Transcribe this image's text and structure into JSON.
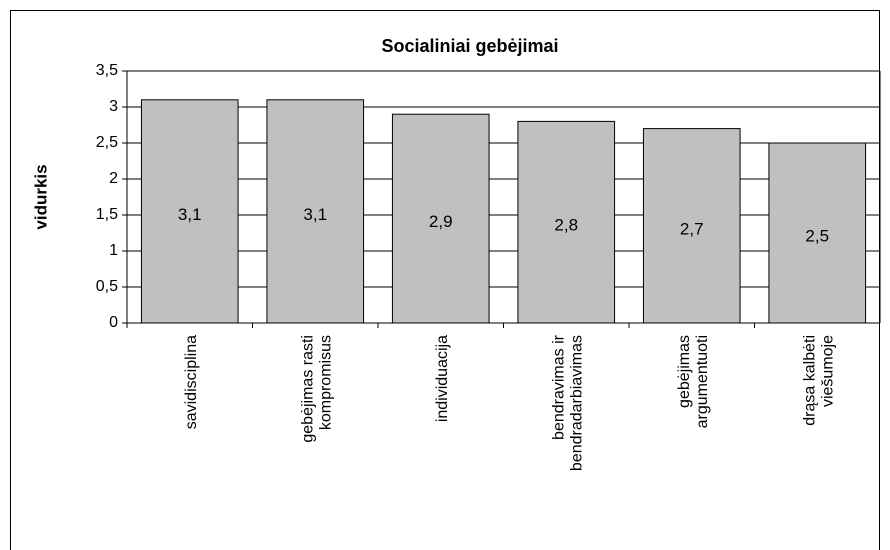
{
  "chart_data": {
    "type": "bar",
    "title": "Socialiniai gebėjimai",
    "y_label": "vidurkis",
    "categories": [
      "savidisciplina",
      "gebėjimas rasti\nkompromisus",
      "individuacija",
      "bendravimas ir\nbendradarbiavimas",
      "gebėjimas\nargumentuoti",
      "drąsa kalbėti\nviešumoje"
    ],
    "values": [
      3.1,
      3.1,
      2.9,
      2.8,
      2.7,
      2.5
    ],
    "value_labels": [
      "3,1",
      "3,1",
      "2,9",
      "2,8",
      "2,7",
      "2,5"
    ],
    "color": "#c0c0c0",
    "ylim": [
      0,
      3.5
    ],
    "yticks": [
      0,
      {
        "value": 0.5,
        "label": "0,5"
      },
      1,
      {
        "value": 1.5,
        "label": "1,5"
      },
      2,
      {
        "value": 2.5,
        "label": "2,5"
      },
      3,
      {
        "value": 3.5,
        "label": "3,5"
      }
    ],
    "grid": true
  }
}
